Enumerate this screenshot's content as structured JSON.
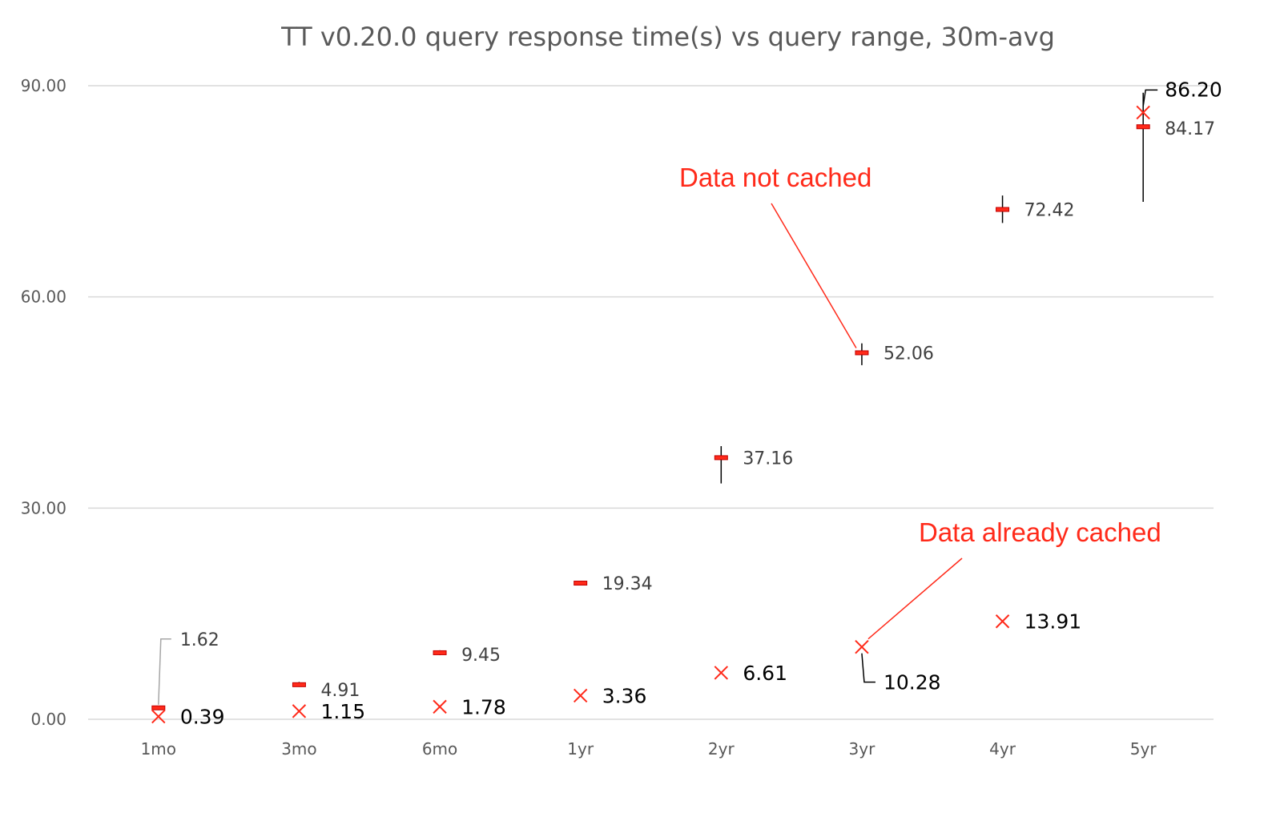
{
  "chart_data": {
    "type": "scatter",
    "title": "TT v0.20.0 query response time(s) vs query range, 30m-avg",
    "xlabel": "",
    "ylabel": "",
    "ylim": [
      0,
      90
    ],
    "yticks": [
      "0.00",
      "30.00",
      "60.00",
      "90.00"
    ],
    "yticks_values": [
      0,
      30,
      60,
      90
    ],
    "categories": [
      "1mo",
      "3mo",
      "6mo",
      "1yr",
      "2yr",
      "3yr",
      "4yr",
      "5yr"
    ],
    "grid": true,
    "legend": "none",
    "series": [
      {
        "marker": "box-with-range",
        "color": "#ff2a1a",
        "values": [
          1.62,
          4.91,
          9.45,
          19.34,
          37.16,
          52.06,
          72.42,
          84.17
        ],
        "labels": [
          "1.62",
          "4.91",
          "9.45",
          "19.34",
          "37.16",
          "52.06",
          "72.42",
          "84.17"
        ],
        "range_low": [
          1.3,
          4.6,
          9.1,
          19.0,
          33.5,
          50.3,
          70.5,
          73.5
        ],
        "range_high": [
          1.9,
          5.3,
          9.8,
          19.6,
          38.8,
          53.4,
          74.4,
          89.0
        ]
      },
      {
        "marker": "x",
        "color": "#ff2a1a",
        "values": [
          0.39,
          1.15,
          1.78,
          3.36,
          6.61,
          10.28,
          13.91,
          86.2
        ],
        "labels": [
          "0.39",
          "1.15",
          "1.78",
          "3.36",
          "6.61",
          "10.28",
          "13.91",
          "86.20"
        ]
      }
    ],
    "annotations": [
      {
        "text": "Data not cached",
        "points_to": "3yr",
        "value": 52.06,
        "color": "#ff2a1a"
      },
      {
        "text": "Data already cached",
        "points_to": "3yr",
        "value": 10.28,
        "color": "#ff2a1a"
      }
    ]
  }
}
